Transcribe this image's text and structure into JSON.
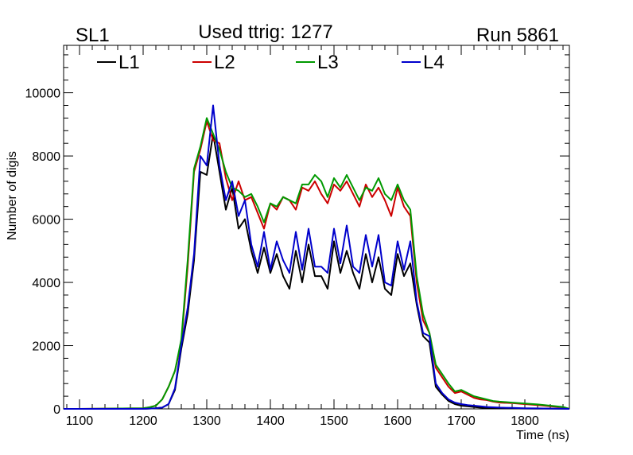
{
  "header": {
    "left_label": "SL1",
    "center_label": "Used ttrig: 1277",
    "right_label": "Run 5861"
  },
  "chart_data": {
    "type": "line",
    "xlabel": "Time (ns)",
    "ylabel": "Number of digis",
    "xlim": [
      1075,
      1870
    ],
    "ylim": [
      0,
      11500
    ],
    "x_ticks": [
      1100,
      1200,
      1300,
      1400,
      1500,
      1600,
      1700,
      1800
    ],
    "y_ticks": [
      0,
      2000,
      4000,
      6000,
      8000,
      10000
    ],
    "grid": false,
    "legend_position": "top-left",
    "series": [
      {
        "name": "L1",
        "color": "#000000",
        "x": [
          1075,
          1100,
          1200,
          1220,
          1230,
          1240,
          1250,
          1260,
          1270,
          1280,
          1290,
          1300,
          1310,
          1320,
          1330,
          1340,
          1350,
          1360,
          1370,
          1380,
          1390,
          1400,
          1410,
          1420,
          1430,
          1440,
          1450,
          1460,
          1470,
          1480,
          1490,
          1500,
          1510,
          1520,
          1530,
          1540,
          1550,
          1560,
          1570,
          1580,
          1590,
          1600,
          1610,
          1620,
          1630,
          1640,
          1650,
          1660,
          1670,
          1680,
          1690,
          1700,
          1710,
          1720,
          1730,
          1740,
          1750,
          1760,
          1780,
          1800,
          1820,
          1840,
          1860,
          1870
        ],
        "y": [
          0,
          0,
          0,
          20,
          40,
          150,
          600,
          1900,
          3000,
          4700,
          7500,
          7400,
          8700,
          7500,
          6300,
          7000,
          5700,
          6000,
          5000,
          4300,
          5100,
          4300,
          4900,
          4200,
          3800,
          5000,
          4000,
          5200,
          4200,
          4200,
          3800,
          5300,
          4300,
          5000,
          4300,
          3800,
          4900,
          4000,
          4800,
          3800,
          3600,
          4900,
          4200,
          4600,
          3300,
          2300,
          2100,
          700,
          450,
          250,
          150,
          100,
          80,
          60,
          40,
          30,
          25,
          20,
          15,
          10,
          8,
          5,
          3,
          0
        ]
      },
      {
        "name": "L2",
        "color": "#cc0000",
        "x": [
          1075,
          1100,
          1200,
          1210,
          1220,
          1230,
          1240,
          1250,
          1260,
          1270,
          1280,
          1290,
          1300,
          1310,
          1320,
          1330,
          1340,
          1350,
          1360,
          1370,
          1380,
          1390,
          1400,
          1410,
          1420,
          1430,
          1440,
          1450,
          1460,
          1470,
          1480,
          1490,
          1500,
          1510,
          1520,
          1530,
          1540,
          1550,
          1560,
          1570,
          1580,
          1590,
          1600,
          1610,
          1620,
          1630,
          1640,
          1650,
          1660,
          1670,
          1680,
          1690,
          1700,
          1710,
          1720,
          1730,
          1740,
          1750,
          1760,
          1780,
          1800,
          1820,
          1840,
          1860,
          1870
        ],
        "y": [
          0,
          0,
          20,
          50,
          100,
          300,
          700,
          1200,
          2100,
          4500,
          7500,
          8200,
          9100,
          8500,
          8400,
          7300,
          6600,
          7200,
          6600,
          6700,
          6200,
          5700,
          6500,
          6300,
          6700,
          6600,
          6300,
          7000,
          6900,
          7200,
          6800,
          6500,
          7100,
          6900,
          7200,
          6800,
          6400,
          7100,
          6700,
          7000,
          6600,
          6100,
          7000,
          6400,
          6100,
          4000,
          2800,
          2400,
          1300,
          1000,
          700,
          500,
          550,
          450,
          350,
          300,
          280,
          230,
          200,
          180,
          150,
          120,
          80,
          50,
          0
        ]
      },
      {
        "name": "L3",
        "color": "#009900",
        "x": [
          1075,
          1100,
          1200,
          1210,
          1220,
          1230,
          1240,
          1250,
          1260,
          1270,
          1280,
          1290,
          1300,
          1310,
          1320,
          1330,
          1340,
          1350,
          1360,
          1370,
          1380,
          1390,
          1400,
          1410,
          1420,
          1430,
          1440,
          1450,
          1460,
          1470,
          1480,
          1490,
          1500,
          1510,
          1520,
          1530,
          1540,
          1550,
          1560,
          1570,
          1580,
          1590,
          1600,
          1610,
          1620,
          1630,
          1640,
          1650,
          1660,
          1670,
          1680,
          1690,
          1700,
          1710,
          1720,
          1730,
          1740,
          1750,
          1760,
          1780,
          1800,
          1820,
          1840,
          1860,
          1870
        ],
        "y": [
          0,
          0,
          20,
          50,
          100,
          300,
          700,
          1200,
          2200,
          4700,
          7600,
          8300,
          9200,
          8700,
          8200,
          7500,
          7000,
          6900,
          6700,
          6800,
          6400,
          5900,
          6500,
          6400,
          6700,
          6600,
          6500,
          7100,
          7100,
          7400,
          7200,
          6700,
          7300,
          7000,
          7400,
          7000,
          6600,
          7000,
          6900,
          7300,
          6800,
          6600,
          7100,
          6600,
          6300,
          4200,
          3000,
          2400,
          1400,
          1100,
          800,
          550,
          600,
          500,
          400,
          350,
          300,
          250,
          230,
          200,
          170,
          140,
          100,
          60,
          0
        ]
      },
      {
        "name": "L4",
        "color": "#0000cc",
        "x": [
          1075,
          1100,
          1200,
          1220,
          1230,
          1240,
          1250,
          1260,
          1270,
          1280,
          1290,
          1300,
          1310,
          1320,
          1330,
          1340,
          1350,
          1360,
          1370,
          1380,
          1390,
          1400,
          1410,
          1420,
          1430,
          1440,
          1450,
          1460,
          1470,
          1480,
          1490,
          1500,
          1510,
          1520,
          1530,
          1540,
          1550,
          1560,
          1570,
          1580,
          1590,
          1600,
          1610,
          1620,
          1630,
          1640,
          1650,
          1660,
          1670,
          1680,
          1690,
          1700,
          1710,
          1720,
          1730,
          1740,
          1750,
          1760,
          1780,
          1800,
          1820,
          1840,
          1860,
          1870
        ],
        "y": [
          0,
          0,
          0,
          20,
          40,
          150,
          650,
          2000,
          3200,
          4900,
          8000,
          7700,
          9600,
          7700,
          6600,
          7200,
          6100,
          6600,
          5200,
          4500,
          5600,
          4400,
          5300,
          4700,
          4300,
          5600,
          4400,
          5700,
          4500,
          4500,
          4300,
          5700,
          4600,
          5800,
          4500,
          4300,
          5500,
          4500,
          5500,
          4000,
          3900,
          5300,
          4400,
          5300,
          3400,
          2400,
          2300,
          800,
          500,
          300,
          200,
          150,
          120,
          100,
          80,
          60,
          50,
          40,
          30,
          20,
          15,
          10,
          5,
          0
        ]
      }
    ]
  }
}
